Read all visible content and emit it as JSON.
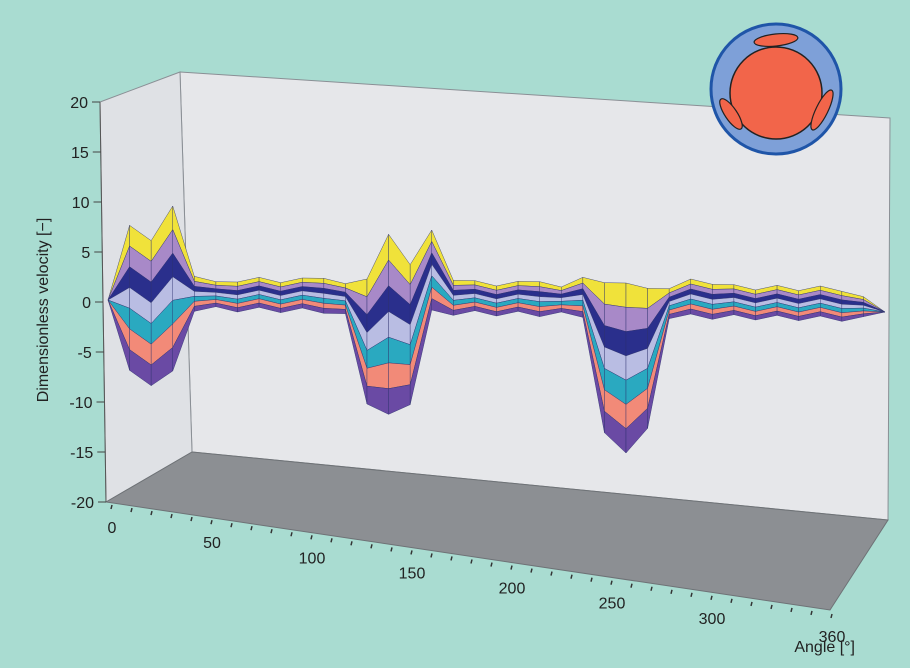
{
  "chart_data": {
    "type": "surface",
    "ylabel": "Dimensionless velocity [−]",
    "xlabel": "Angle [°]",
    "y_ticks": [
      20,
      15,
      10,
      5,
      0,
      -5,
      -10,
      -15,
      -20
    ],
    "x_ticks": [
      0,
      50,
      100,
      150,
      200,
      250,
      300,
      360
    ],
    "ylim": [
      -20,
      20
    ],
    "xlim": [
      0,
      360
    ],
    "grid": false,
    "colormap": [
      "#f0e23a",
      "#a889c8",
      "#2a2f8c",
      "#b9bde3",
      "#2aa9c0",
      "#f28a78",
      "#6a4aa4"
    ],
    "series": [
      {
        "x": [
          0,
          10,
          20,
          30,
          40,
          50,
          60,
          70,
          80,
          90,
          100,
          110,
          120,
          130,
          140,
          150,
          160,
          170,
          180,
          190,
          200,
          210,
          220,
          230,
          240,
          250,
          260,
          270,
          280,
          290,
          300,
          310,
          320,
          330,
          340,
          350,
          360
        ],
        "y_max": [
          0,
          7.5,
          6.0,
          9.5,
          2.5,
          2.0,
          2.0,
          2.5,
          2.0,
          2.5,
          2.5,
          2.0,
          2.5,
          7.0,
          4.0,
          7.5,
          2.5,
          2.5,
          2.0,
          2.5,
          2.5,
          2.0,
          3.0,
          2.5,
          2.5,
          2.0,
          2.0,
          3.0,
          2.5,
          2.5,
          2.0,
          2.5,
          2.0,
          2.5,
          2.0,
          1.5,
          0
        ],
        "y_min": [
          0,
          -7.0,
          -8.5,
          -7.0,
          -1.0,
          -0.5,
          -1.0,
          -0.5,
          -1.0,
          -0.5,
          -1.0,
          -1.0,
          -10.0,
          -11.0,
          -10.0,
          -0.5,
          -1.0,
          -0.5,
          -1.0,
          -0.5,
          -1.0,
          -0.5,
          -1.0,
          -12.5,
          -14.5,
          -12.0,
          -1.0,
          -0.5,
          -1.0,
          -0.5,
          -1.0,
          -0.5,
          -1.0,
          -0.5,
          -1.0,
          -0.5,
          0
        ]
      }
    ]
  },
  "inset": {
    "description": "rotor-icon"
  }
}
